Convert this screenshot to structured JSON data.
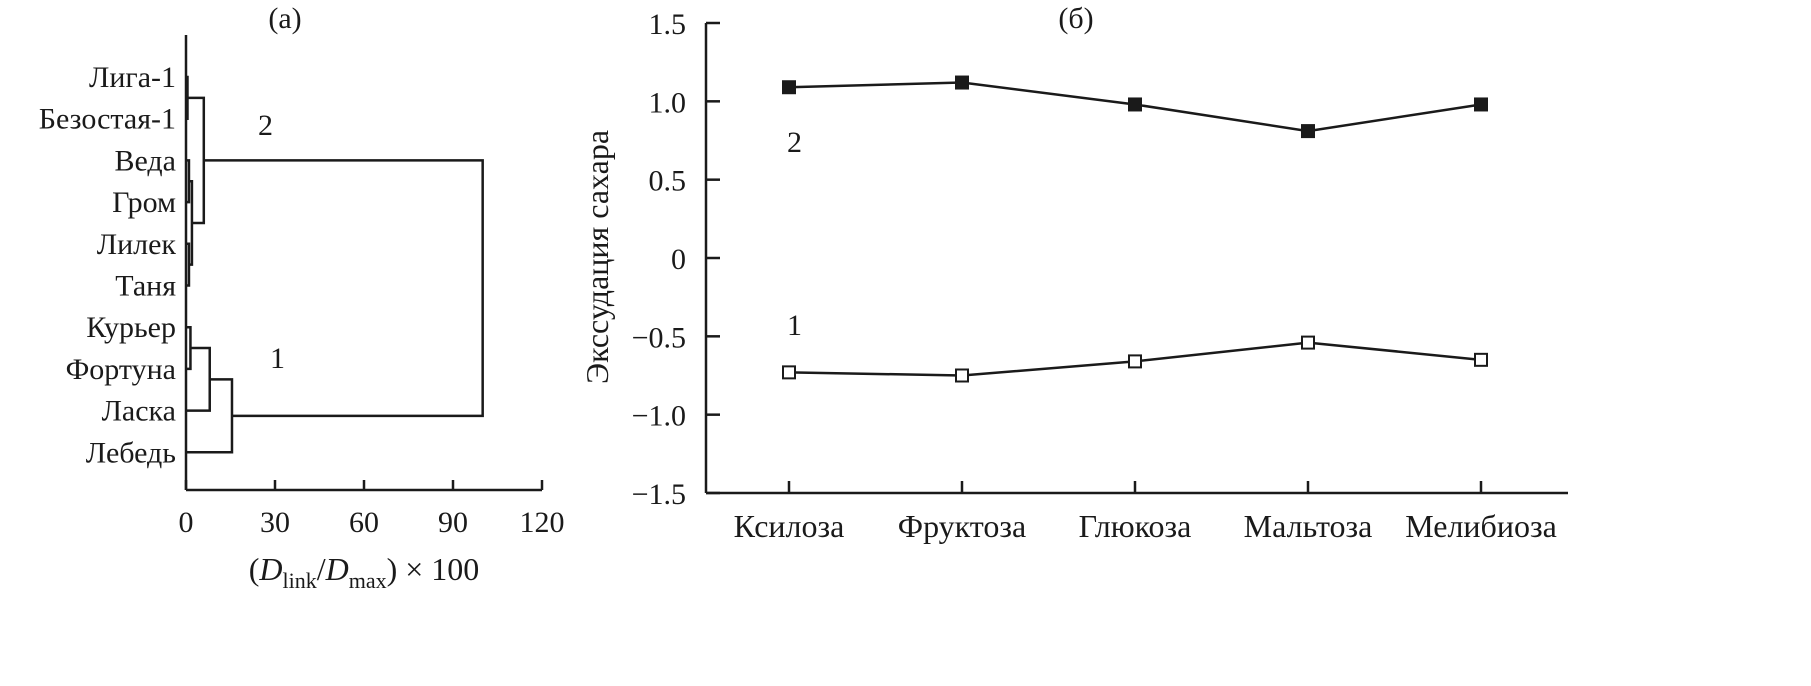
{
  "chart_data": [
    {
      "type": "dendrogram",
      "title": "(а)",
      "xlabel_parts": {
        "open": "(",
        "d1": "D",
        "sub1": "link",
        "slash": "/",
        "d2": "D",
        "sub2": "max",
        "close": ") × 100"
      },
      "xlim": [
        0,
        120
      ],
      "xticks": [
        "0",
        "30",
        "60",
        "90",
        "120"
      ],
      "leaves": [
        "Лига-1",
        "Безостая-1",
        "Веда",
        "Гром",
        "Лилек",
        "Таня",
        "Курьер",
        "Фортуна",
        "Ласка",
        "Лебедь"
      ],
      "merges": [
        {
          "a": 0,
          "b": 1,
          "height": 0.5
        },
        {
          "a": 2,
          "b": 3,
          "height": 1
        },
        {
          "a": 4,
          "b": 5,
          "height": 1
        },
        {
          "a": "2-3",
          "b": "4-5",
          "height": 2
        },
        {
          "a": "0-1",
          "b": "2-5",
          "height": 6
        },
        {
          "a": 6,
          "b": 7,
          "height": 1.5
        },
        {
          "a": "6-7",
          "b": 8,
          "height": 8
        },
        {
          "a": "6-8",
          "b": 9,
          "height": 15.5
        },
        {
          "a": "0-5",
          "b": "6-9",
          "height": 100
        }
      ],
      "cluster_labels": [
        "2",
        "1"
      ]
    },
    {
      "type": "line",
      "title": "(б)",
      "ylabel": "Экссудация сахара",
      "categories": [
        "Ксилоза",
        "Фруктоза",
        "Глюкоза",
        "Мальтоза",
        "Мелибиоза"
      ],
      "ylim": [
        -1.5,
        1.5
      ],
      "yticks": [
        "1.5",
        "1.0",
        "0.5",
        "0",
        "-0.5",
        "-1.0",
        "-1.5"
      ],
      "grid": false,
      "series": [
        {
          "name": "2",
          "marker": "filled-square",
          "values": [
            1.09,
            1.12,
            0.98,
            0.81,
            0.98
          ]
        },
        {
          "name": "1",
          "marker": "open-square",
          "values": [
            -0.73,
            -0.75,
            -0.66,
            -0.54,
            -0.65
          ]
        }
      ]
    }
  ]
}
